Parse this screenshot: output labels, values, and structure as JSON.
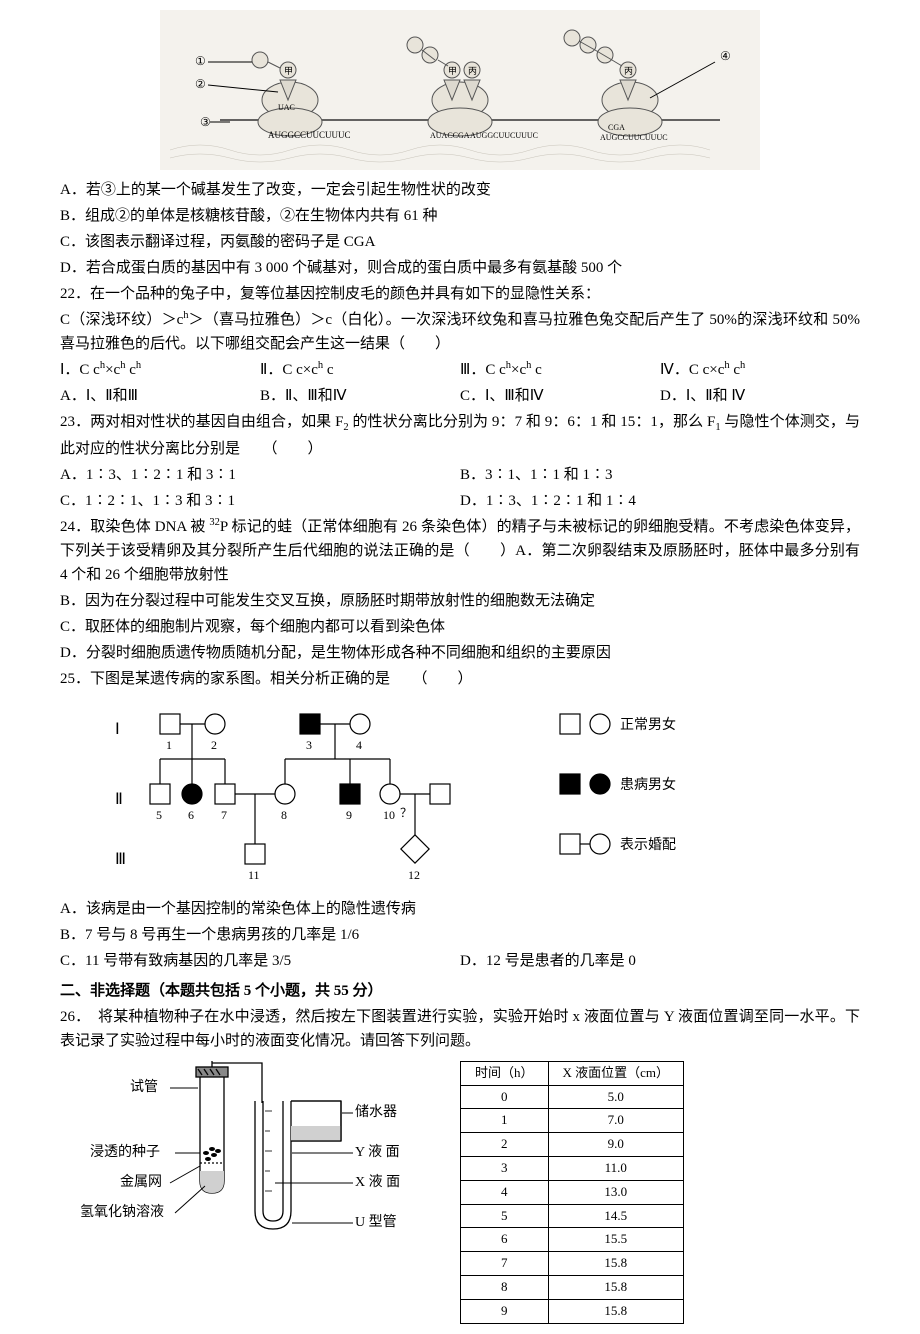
{
  "q21": {
    "optA": "A．若③上的某一个碱基发生了改变，一定会引起生物性状的改变",
    "optB": "B．组成②的单体是核糖核苷酸，②在生物体内共有 61 种",
    "optC": "C．该图表示翻译过程，丙氨酸的密码子是 CGA",
    "optD": "D．若合成蛋白质的基因中有 3 000 个碱基对，则合成的蛋白质中最多有氨基酸 500 个"
  },
  "q22": {
    "stem": "22．在一个品种的兔子中，复等位基因控制皮毛的颜色并具有如下的显隐性关系：",
    "stem2_pre": "C（深浅环纹）＞c",
    "stem2_mid": "＞（喜马拉雅色）＞c（白化）。一次深浅环纹兔和喜马拉雅色兔交配后产生了 50%的深浅环纹和 50%喜马拉雅色的后代。以下哪组交配会产生这一结果（　　）",
    "cross1_pre": "Ⅰ．C c",
    "cross1_mid": "×c",
    "cross1_end": " c",
    "cross2_pre": "Ⅱ．C c×c",
    "cross2_end": " c",
    "cross3_pre": "Ⅲ．C c",
    "cross3_mid": "×c",
    "cross3_end": " c",
    "cross4_pre": "Ⅳ．C c×c",
    "cross4_end": " c",
    "optA": "A．Ⅰ、Ⅱ和Ⅲ",
    "optB": "B．Ⅱ、Ⅲ和Ⅳ",
    "optC": "C．Ⅰ、Ⅲ和Ⅳ",
    "optD": "D．Ⅰ、Ⅱ和 Ⅳ"
  },
  "q23": {
    "stem_pre": "23．两对相对性状的基因自由组合，如果 F",
    "stem_mid": " 的性状分离比分别为 9：7 和 9：6：1 和 15：1，那么 F",
    "stem_end": " 与隐性个体测交，与此对应的性状分离比分别是　　（　　）",
    "optA": "A．1∶3、1∶2∶1 和 3∶1",
    "optB": "B．3∶1、1∶1 和 1∶3",
    "optC": "C．1∶2∶1、1∶3 和 3∶1",
    "optD": "D．1∶3、1∶2∶1 和 1∶4"
  },
  "q24": {
    "stem_pre": "24．取染色体 DNA 被 ",
    "stem_end": "P 标记的蛙（正常体细胞有 26 条染色体）的精子与未被标记的卵细胞受精。不考虑染色体变异，下列关于该受精卵及其分裂所产生后代细胞的说法正确的是（　　）A．第二次卵裂结束及原肠胚时，胚体中最多分别有 4 个和 26 个细胞带放射性",
    "optB": "B．因为在分裂过程中可能发生交叉互换，原肠胚时期带放射性的细胞数无法确定",
    "optC": "C．取胚体的细胞制片观察，每个细胞内都可以看到染色体",
    "optD": "D．分裂时细胞质遗传物质随机分配，是生物体形成各种不同细胞和组织的主要原因"
  },
  "q25": {
    "stem": "25．下图是某遗传病的家系图。相关分析正确的是　　（　　）",
    "optA": "A．该病是由一个基因控制的常染色体上的隐性遗传病",
    "optB": "B．7 号与 8 号再生一个患病男孩的几率是 1/6",
    "optC": "C．11 号带有致病基因的几率是 3/5",
    "optD": "D．12 号是患者的几率是 0",
    "legend1": "正常男女",
    "legend2": "患病男女",
    "legend3": "表示婚配",
    "gen1": "Ⅰ",
    "gen2": "Ⅱ",
    "gen3": "Ⅲ"
  },
  "section2": "二、非选择题（本题共包括 5 个小题，共 55 分）",
  "q26": {
    "stem": "26．　将某种植物种子在水中浸透，然后按左下图装置进行实验，实验开始时 x 液面位置与 Y 液面位置调至同一水平。下表记录了实验过程中每小时的液面变化情况。请回答下列问题。",
    "labels": {
      "tube": "试管",
      "seed": "浸透的种子",
      "net": "金属网",
      "naoh": "氢氧化钠溶液",
      "store": "储水器",
      "yliq": "Y 液 面",
      "xliq": "X 液 面",
      "utube": "U 型管"
    }
  },
  "table": {
    "h1": "时间（h）",
    "h2": "X 液面位置（cm）",
    "rows": [
      [
        "0",
        "5.0"
      ],
      [
        "1",
        "7.0"
      ],
      [
        "2",
        "9.0"
      ],
      [
        "3",
        "11.0"
      ],
      [
        "4",
        "13.0"
      ],
      [
        "5",
        "14.5"
      ],
      [
        "6",
        "15.5"
      ],
      [
        "7",
        "15.8"
      ],
      [
        "8",
        "15.8"
      ],
      [
        "9",
        "15.8"
      ]
    ]
  },
  "svg_top": {
    "bg": "#f4f2ed",
    "rna": "AUGGCCUUCUUUC",
    "codon": "UAC",
    "anti": "CGA",
    "rna2": "AUACCGA",
    "rna2b": "AUGGCUUCUUUC",
    "rna3a": "CGA",
    "rna3b": "AUGCCUUCUUUC"
  }
}
